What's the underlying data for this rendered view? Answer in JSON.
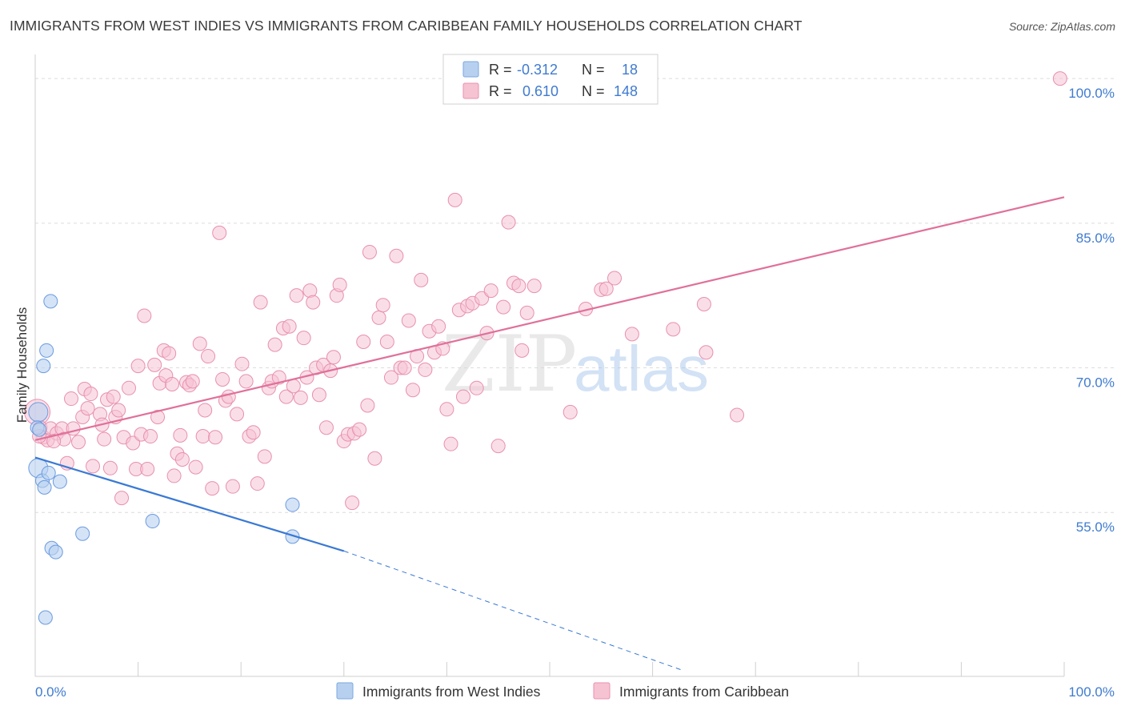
{
  "header": {
    "title": "IMMIGRANTS FROM WEST INDIES VS IMMIGRANTS FROM CARIBBEAN FAMILY HOUSEHOLDS CORRELATION CHART",
    "source": "Source: ZipAtlas.com"
  },
  "watermark": {
    "zip": "ZIP",
    "atlas": "atlas"
  },
  "legend": {
    "r_label": "R =",
    "n_label": "N =",
    "rows": [
      {
        "r": "-0.312",
        "n": "18"
      },
      {
        "r": "0.610",
        "n": "148"
      }
    ]
  },
  "colors": {
    "west_indies": "#3a79d4",
    "west_indies_fill": "#b8d0f0",
    "caribbean": "#e0709a",
    "caribbean_fill": "#f6c3d3",
    "tick_text": "#3f7bd0",
    "grid": "#dcdcdc"
  },
  "chart_data": {
    "type": "scatter",
    "title": "IMMIGRANTS FROM WEST INDIES VS IMMIGRANTS FROM CARIBBEAN FAMILY HOUSEHOLDS CORRELATION CHART",
    "xlabel": "",
    "ylabel": "Family Households",
    "xlim": [
      0,
      100
    ],
    "ylim": [
      38,
      102.5
    ],
    "x_ticks": [
      "0.0%",
      "100.0%"
    ],
    "y_ticks": [
      {
        "value": 55,
        "label": "55.0%"
      },
      {
        "value": 70,
        "label": "70.0%"
      },
      {
        "value": 85,
        "label": "85.0%"
      },
      {
        "value": 100,
        "label": "100.0%"
      }
    ],
    "grid": true,
    "legend_position": "top-center",
    "series": [
      {
        "name": "Immigrants from West Indies",
        "r": -0.312,
        "n": 18,
        "trend": {
          "x": [
            0,
            30
          ],
          "y": [
            60.7,
            51.0
          ],
          "dashed_to": [
            63,
            38.6
          ]
        },
        "points": [
          [
            0.3,
            65.4
          ],
          [
            0.2,
            63.8
          ],
          [
            0.3,
            59.6
          ],
          [
            0.7,
            58.3
          ],
          [
            0.9,
            57.6
          ],
          [
            1.3,
            59.1
          ],
          [
            2.4,
            58.2
          ],
          [
            0.8,
            70.2
          ],
          [
            1.1,
            71.8
          ],
          [
            1.5,
            76.9
          ],
          [
            1.6,
            51.3
          ],
          [
            2.0,
            50.9
          ],
          [
            4.6,
            52.8
          ],
          [
            11.4,
            54.1
          ],
          [
            25.0,
            55.8
          ],
          [
            25.0,
            52.5
          ],
          [
            1.0,
            44.1
          ],
          [
            0.4,
            63.6
          ]
        ]
      },
      {
        "name": "Immigrants from Caribbean",
        "r": 0.61,
        "n": 148,
        "trend": {
          "x": [
            0,
            100
          ],
          "y": [
            62.5,
            87.7
          ]
        },
        "points": [
          [
            0.2,
            65.4
          ],
          [
            0.5,
            63.8
          ],
          [
            0.8,
            62.8
          ],
          [
            1.2,
            62.5
          ],
          [
            1.5,
            63.7
          ],
          [
            2.1,
            63.2
          ],
          [
            2.6,
            63.7
          ],
          [
            2.8,
            62.6
          ],
          [
            3.1,
            60.1
          ],
          [
            3.5,
            66.8
          ],
          [
            3.7,
            63.7
          ],
          [
            4.2,
            62.3
          ],
          [
            4.6,
            64.9
          ],
          [
            4.8,
            67.8
          ],
          [
            5.1,
            65.8
          ],
          [
            5.4,
            67.3
          ],
          [
            5.6,
            59.8
          ],
          [
            6.3,
            65.2
          ],
          [
            6.5,
            64.1
          ],
          [
            6.7,
            62.6
          ],
          [
            7.0,
            66.7
          ],
          [
            7.3,
            59.6
          ],
          [
            7.6,
            67.0
          ],
          [
            7.8,
            64.9
          ],
          [
            8.1,
            65.6
          ],
          [
            8.4,
            56.5
          ],
          [
            8.6,
            62.8
          ],
          [
            9.1,
            67.9
          ],
          [
            9.5,
            62.2
          ],
          [
            9.8,
            59.5
          ],
          [
            10.0,
            70.2
          ],
          [
            10.3,
            63.1
          ],
          [
            10.6,
            75.4
          ],
          [
            10.9,
            59.5
          ],
          [
            11.2,
            62.9
          ],
          [
            11.6,
            70.3
          ],
          [
            11.9,
            64.9
          ],
          [
            12.1,
            68.4
          ],
          [
            12.5,
            71.8
          ],
          [
            12.7,
            69.2
          ],
          [
            13.0,
            71.5
          ],
          [
            13.3,
            68.3
          ],
          [
            13.5,
            58.8
          ],
          [
            13.8,
            61.1
          ],
          [
            14.1,
            63.0
          ],
          [
            14.3,
            60.5
          ],
          [
            14.7,
            68.5
          ],
          [
            15.0,
            68.2
          ],
          [
            15.3,
            68.6
          ],
          [
            15.6,
            59.7
          ],
          [
            16.0,
            72.5
          ],
          [
            16.3,
            62.9
          ],
          [
            16.5,
            65.6
          ],
          [
            16.8,
            71.2
          ],
          [
            17.2,
            57.5
          ],
          [
            17.5,
            62.8
          ],
          [
            17.9,
            84.0
          ],
          [
            18.2,
            68.8
          ],
          [
            18.5,
            66.6
          ],
          [
            18.8,
            67.0
          ],
          [
            19.2,
            57.7
          ],
          [
            19.6,
            65.2
          ],
          [
            20.1,
            70.4
          ],
          [
            20.5,
            68.6
          ],
          [
            20.8,
            62.9
          ],
          [
            21.2,
            63.3
          ],
          [
            21.6,
            58.0
          ],
          [
            21.9,
            76.8
          ],
          [
            22.3,
            60.8
          ],
          [
            22.7,
            67.9
          ],
          [
            23.0,
            68.6
          ],
          [
            23.3,
            72.4
          ],
          [
            23.7,
            69.0
          ],
          [
            24.1,
            74.1
          ],
          [
            24.4,
            67.0
          ],
          [
            24.7,
            74.3
          ],
          [
            25.1,
            68.1
          ],
          [
            25.4,
            77.5
          ],
          [
            25.8,
            66.9
          ],
          [
            26.1,
            73.1
          ],
          [
            26.4,
            69.0
          ],
          [
            26.7,
            78.0
          ],
          [
            27.0,
            76.8
          ],
          [
            27.3,
            70.0
          ],
          [
            27.6,
            67.2
          ],
          [
            28.0,
            70.3
          ],
          [
            28.3,
            63.8
          ],
          [
            28.7,
            69.7
          ],
          [
            29.0,
            71.1
          ],
          [
            29.3,
            77.5
          ],
          [
            29.6,
            78.6
          ],
          [
            30.0,
            62.4
          ],
          [
            30.4,
            63.1
          ],
          [
            30.8,
            56.0
          ],
          [
            31.0,
            63.2
          ],
          [
            31.5,
            63.6
          ],
          [
            31.9,
            72.7
          ],
          [
            32.3,
            66.1
          ],
          [
            32.5,
            82.0
          ],
          [
            33.0,
            60.6
          ],
          [
            33.4,
            75.2
          ],
          [
            33.8,
            76.5
          ],
          [
            34.2,
            72.7
          ],
          [
            34.6,
            69.0
          ],
          [
            35.1,
            81.6
          ],
          [
            35.5,
            70.0
          ],
          [
            35.9,
            70.0
          ],
          [
            36.3,
            74.9
          ],
          [
            36.7,
            67.7
          ],
          [
            37.1,
            71.2
          ],
          [
            37.5,
            79.1
          ],
          [
            37.9,
            69.8
          ],
          [
            38.3,
            73.8
          ],
          [
            38.8,
            71.6
          ],
          [
            39.2,
            74.3
          ],
          [
            39.6,
            72.0
          ],
          [
            40.0,
            65.7
          ],
          [
            40.4,
            62.1
          ],
          [
            40.8,
            87.4
          ],
          [
            41.2,
            76.0
          ],
          [
            41.6,
            67.0
          ],
          [
            42.0,
            76.4
          ],
          [
            42.5,
            76.7
          ],
          [
            42.9,
            67.9
          ],
          [
            43.4,
            77.2
          ],
          [
            43.9,
            73.6
          ],
          [
            44.3,
            78.0
          ],
          [
            45.0,
            61.9
          ],
          [
            45.5,
            76.3
          ],
          [
            46.0,
            85.1
          ],
          [
            46.5,
            78.8
          ],
          [
            47.0,
            78.5
          ],
          [
            47.3,
            71.8
          ],
          [
            47.8,
            75.7
          ],
          [
            48.5,
            78.5
          ],
          [
            52.0,
            65.4
          ],
          [
            53.5,
            76.1
          ],
          [
            55.0,
            78.1
          ],
          [
            55.5,
            78.2
          ],
          [
            56.3,
            79.3
          ],
          [
            58.0,
            73.5
          ],
          [
            62.0,
            74.0
          ],
          [
            65.0,
            76.6
          ],
          [
            65.2,
            71.6
          ],
          [
            68.2,
            65.1
          ],
          [
            99.6,
            100.0
          ],
          [
            0.4,
            62.9
          ],
          [
            1.8,
            62.4
          ]
        ]
      }
    ]
  },
  "bottom_legend": [
    {
      "label": "Immigrants from West Indies"
    },
    {
      "label": "Immigrants from Caribbean"
    }
  ]
}
